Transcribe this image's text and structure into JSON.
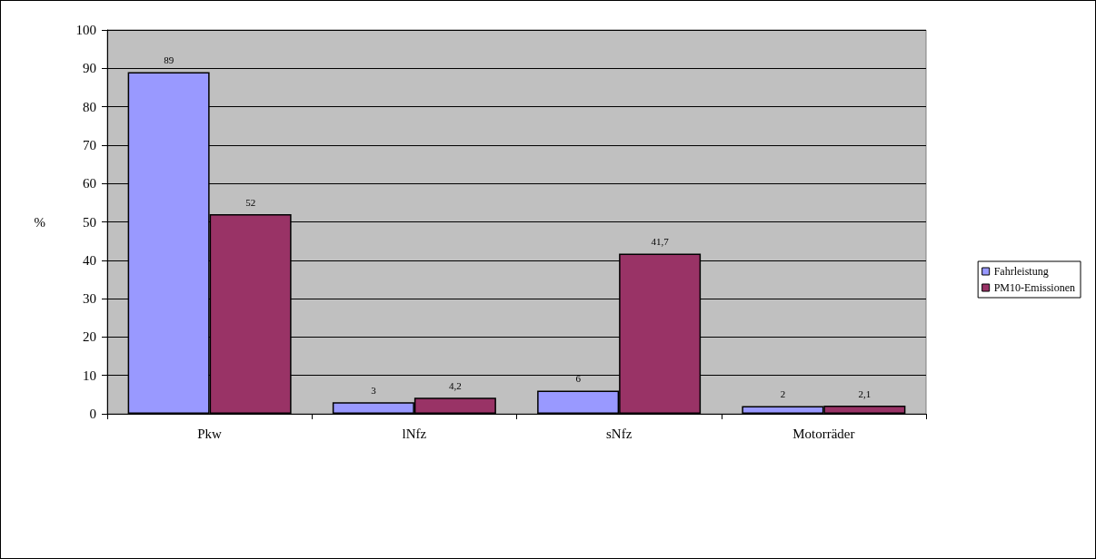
{
  "chart_data": {
    "type": "bar",
    "ylabel": "%",
    "categories": [
      "Pkw",
      "lNfz",
      "sNfz",
      "Motorräder"
    ],
    "series": [
      {
        "name": "Fahrleistung",
        "color": "#9999ff",
        "values": [
          89,
          3,
          6,
          2
        ],
        "value_labels": [
          "89",
          "3",
          "6",
          "2"
        ]
      },
      {
        "name": "PM10-Emissionen",
        "color": "#993366",
        "values": [
          52,
          4.2,
          41.7,
          2.1
        ],
        "value_labels": [
          "52",
          "4,2",
          "41,7",
          "2,1"
        ]
      }
    ],
    "ylim": [
      0,
      100
    ],
    "yticks": [
      0,
      10,
      20,
      30,
      40,
      50,
      60,
      70,
      80,
      90,
      100
    ],
    "grid": "y",
    "legend": "right"
  }
}
